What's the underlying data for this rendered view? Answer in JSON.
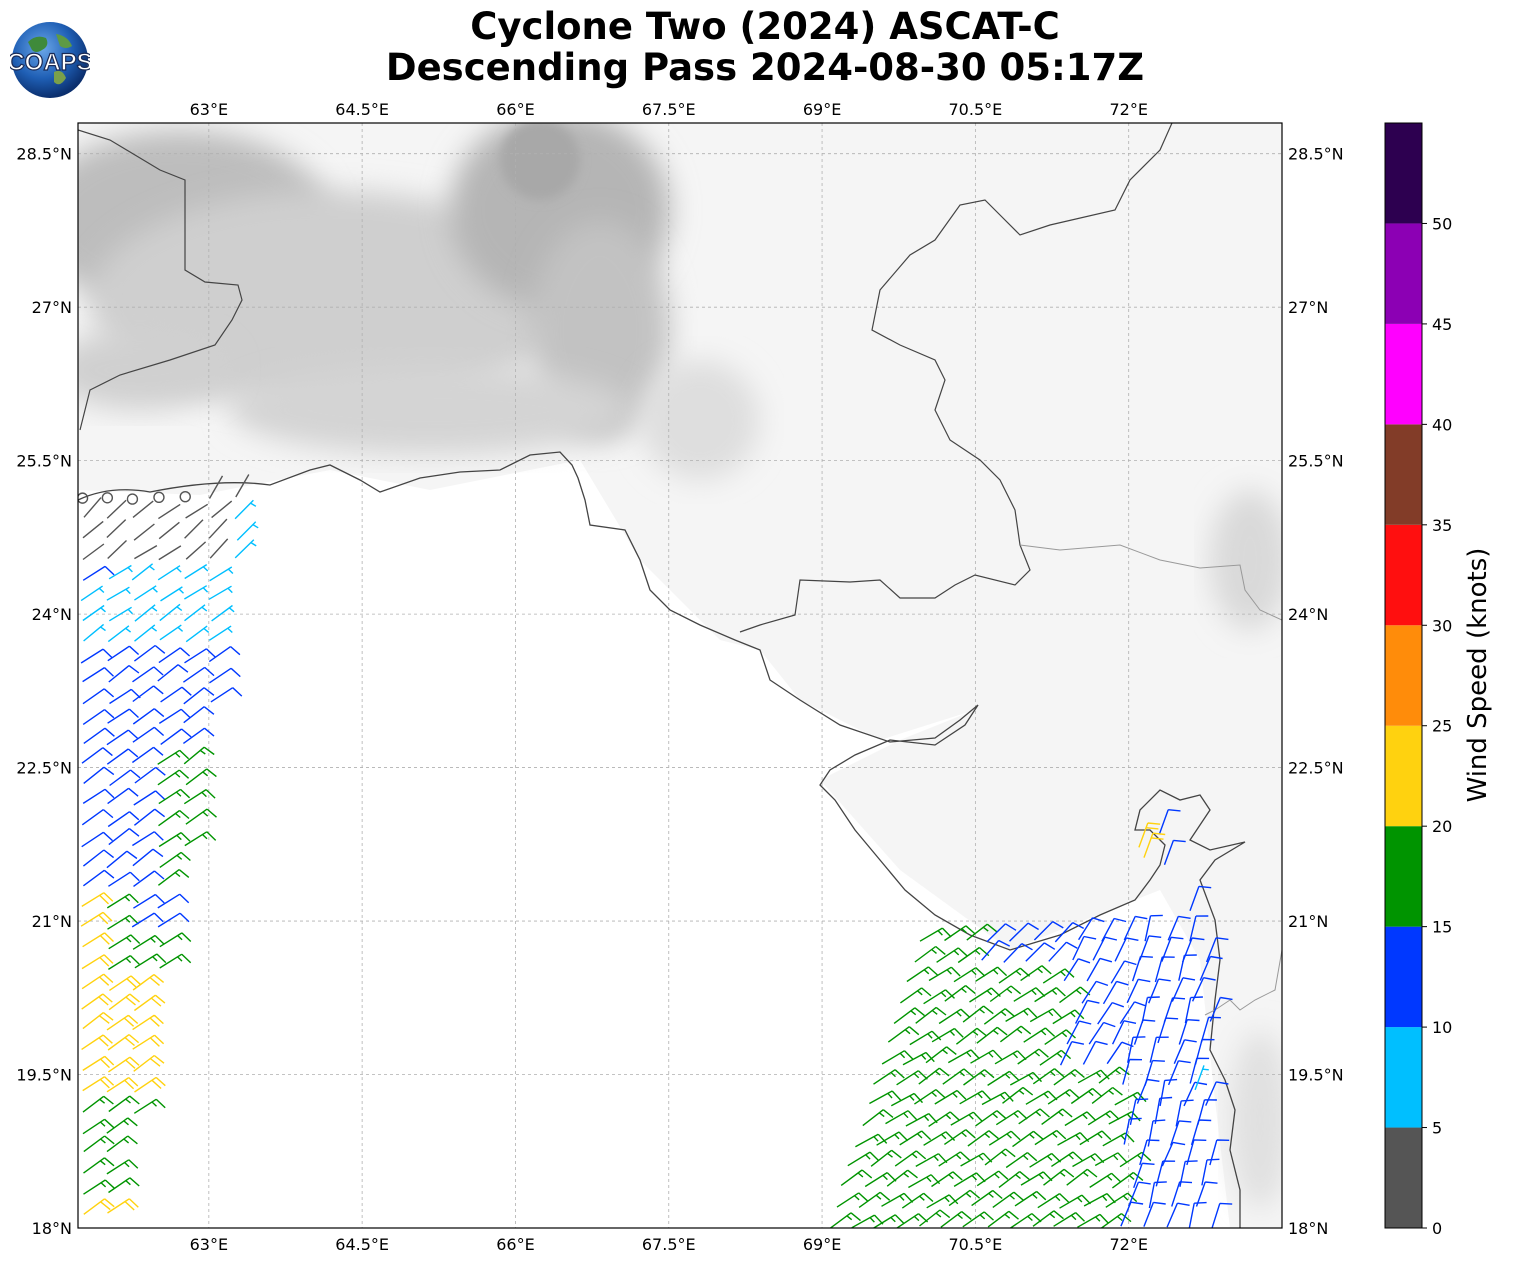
{
  "header": {
    "title_line1": "Cyclone Two (2024) ASCAT-C",
    "title_line2": "Descending Pass 2024-08-30 05:17Z",
    "logo_text": "COAPS"
  },
  "map": {
    "lon_range": [
      61.72,
      73.5
    ],
    "lat_range": [
      18.0,
      28.8
    ],
    "lon_ticks": [
      "63°E",
      "64.5°E",
      "66°E",
      "67.5°E",
      "69°E",
      "70.5°E",
      "72°E"
    ],
    "lon_tick_values": [
      63,
      64.5,
      66,
      67.5,
      69,
      70.5,
      72
    ],
    "lat_ticks": [
      "18°N",
      "19.5°N",
      "21°N",
      "22.5°N",
      "24°N",
      "25.5°N",
      "27°N",
      "28.5°N"
    ],
    "lat_tick_values": [
      18,
      19.5,
      21,
      22.5,
      24,
      25.5,
      27,
      28.5
    ],
    "gridlines": true,
    "background": "grayscale infrared imagery",
    "coast_color": "#444444",
    "border_color": "#999999"
  },
  "colorbar": {
    "label": "Wind Speed (knots)",
    "ticks": [
      "0",
      "5",
      "10",
      "15",
      "20",
      "25",
      "30",
      "35",
      "40",
      "45",
      "50"
    ],
    "tick_values": [
      0,
      5,
      10,
      15,
      20,
      25,
      30,
      35,
      40,
      45,
      50
    ],
    "max": 55,
    "bins": [
      {
        "from": 0,
        "to": 5,
        "color": "#555555"
      },
      {
        "from": 5,
        "to": 10,
        "color": "#00bfff"
      },
      {
        "from": 10,
        "to": 15,
        "color": "#0038ff"
      },
      {
        "from": 15,
        "to": 20,
        "color": "#009400"
      },
      {
        "from": 20,
        "to": 25,
        "color": "#ffd20f"
      },
      {
        "from": 25,
        "to": 30,
        "color": "#ff8c0a"
      },
      {
        "from": 30,
        "to": 35,
        "color": "#ff0f0f"
      },
      {
        "from": 35,
        "to": 40,
        "color": "#823c28"
      },
      {
        "from": 40,
        "to": 45,
        "color": "#ff00ff"
      },
      {
        "from": 45,
        "to": 50,
        "color": "#8c00b4"
      },
      {
        "from": 50,
        "to": 55,
        "color": "#2d0050"
      }
    ]
  },
  "wind_swaths": [
    {
      "name": "west-swath",
      "from_lon": 61.72,
      "lat_top": 25.2,
      "lat_bottom": 18.05,
      "lon_right_top": 63.4,
      "lon_right_bottom": 62.05
    },
    {
      "name": "east-swath",
      "from_lat": 18.0,
      "lat_top": 20.9,
      "lon_left_top": 69.9,
      "lon_left_bottom": 69.1,
      "lon_right": 72.8
    }
  ]
}
